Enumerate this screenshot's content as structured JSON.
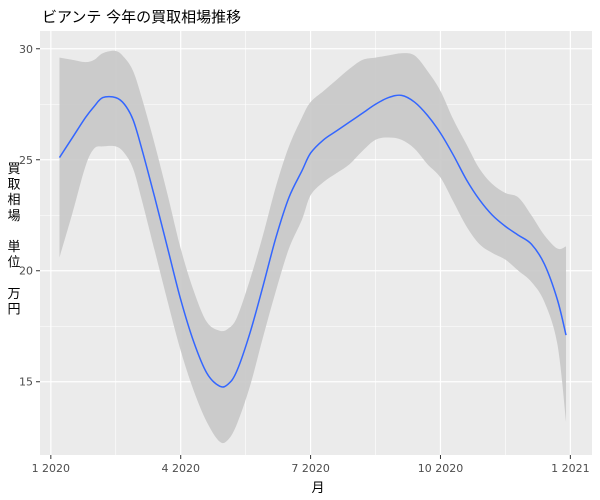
{
  "chart_data": {
    "type": "line",
    "title": "ビアンテ 今年の買取相場推移",
    "xlabel": "月",
    "ylabel": "買取相場　単位　万円",
    "ylabel_chars": [
      "買",
      "取",
      "相",
      "場",
      "",
      "単",
      "位",
      "",
      "万",
      "円"
    ],
    "x_ticks": [
      {
        "label": "1 2020",
        "value": 0
      },
      {
        "label": "4 2020",
        "value": 3
      },
      {
        "label": "7 2020",
        "value": 6
      },
      {
        "label": "10 2020",
        "value": 9
      },
      {
        "label": "1 2021",
        "value": 12
      }
    ],
    "y_ticks": [
      15,
      20,
      25,
      30
    ],
    "xlim": [
      -0.25,
      12.5
    ],
    "ylim": [
      11.7,
      30.8
    ],
    "grid": true,
    "colors": {
      "line": "#3366FF",
      "band": "#C8C8C8",
      "panel": "#EBEBEB",
      "grid": "#FFFFFF"
    },
    "series": [
      {
        "x": [
          0.2,
          0.5,
          0.8,
          1.0,
          1.2,
          1.5,
          1.7,
          1.9,
          2.1,
          2.4,
          2.7,
          3.0,
          3.3,
          3.6,
          3.9,
          4.1,
          4.3,
          4.6,
          4.9,
          5.2,
          5.5,
          5.8,
          6.0,
          6.3,
          6.6,
          6.9,
          7.2,
          7.5,
          7.8,
          8.1,
          8.4,
          8.7,
          9.0,
          9.3,
          9.6,
          9.9,
          10.2,
          10.5,
          10.8,
          11.1,
          11.4,
          11.7,
          11.9
        ],
        "y": [
          25.1,
          26.0,
          26.9,
          27.4,
          27.8,
          27.8,
          27.5,
          26.8,
          25.5,
          23.3,
          21.0,
          18.7,
          16.8,
          15.4,
          14.8,
          14.9,
          15.5,
          17.2,
          19.3,
          21.5,
          23.3,
          24.5,
          25.3,
          25.9,
          26.3,
          26.7,
          27.1,
          27.5,
          27.8,
          27.9,
          27.6,
          27.0,
          26.2,
          25.2,
          24.1,
          23.2,
          22.5,
          22.0,
          21.6,
          21.2,
          20.3,
          18.7,
          17.1
        ],
        "upper": [
          29.6,
          29.5,
          29.4,
          29.5,
          29.8,
          29.9,
          29.6,
          29.0,
          27.8,
          25.7,
          23.4,
          21.0,
          19.1,
          17.7,
          17.3,
          17.4,
          17.9,
          19.6,
          21.6,
          23.8,
          25.6,
          26.9,
          27.6,
          28.1,
          28.6,
          29.1,
          29.5,
          29.6,
          29.7,
          29.8,
          29.7,
          29.0,
          28.1,
          26.8,
          25.7,
          24.6,
          23.9,
          23.5,
          23.3,
          22.5,
          21.6,
          21.0,
          21.1
        ],
        "lower": [
          20.6,
          22.6,
          24.7,
          25.5,
          25.6,
          25.6,
          25.3,
          24.6,
          23.2,
          20.9,
          18.6,
          16.4,
          14.6,
          13.2,
          12.3,
          12.4,
          13.1,
          14.8,
          17.0,
          19.1,
          21.0,
          22.3,
          23.4,
          24.0,
          24.4,
          24.8,
          25.4,
          25.9,
          26.0,
          25.9,
          25.5,
          24.8,
          24.2,
          23.1,
          22.0,
          21.2,
          20.8,
          20.5,
          20.0,
          19.5,
          18.6,
          16.7,
          13.2
        ]
      }
    ]
  }
}
